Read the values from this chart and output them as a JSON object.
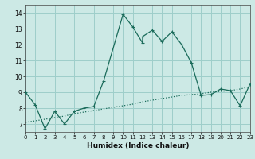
{
  "xlabel": "Humidex (Indice chaleur)",
  "background_color": "#cce9e5",
  "grid_color": "#9ececa",
  "line_color": "#1a6b5a",
  "x_main": [
    0,
    1,
    2,
    3,
    4,
    5,
    6,
    7,
    8,
    10,
    11,
    12,
    12,
    13,
    14,
    15,
    16,
    17,
    18,
    19,
    20,
    21,
    22,
    23
  ],
  "y_main": [
    9.0,
    8.2,
    6.7,
    7.8,
    7.0,
    7.8,
    8.0,
    8.1,
    9.7,
    13.9,
    13.1,
    12.1,
    12.5,
    12.9,
    12.2,
    12.8,
    12.0,
    10.85,
    8.8,
    8.85,
    9.2,
    9.1,
    8.15,
    9.5
  ],
  "x_trend": [
    0,
    2,
    3,
    4,
    5,
    6,
    7,
    8,
    9,
    10,
    11,
    12,
    13,
    14,
    15,
    16,
    17,
    18,
    19,
    20,
    21,
    22,
    23
  ],
  "y_trend": [
    7.1,
    7.3,
    7.4,
    7.5,
    7.65,
    7.75,
    7.85,
    7.95,
    8.05,
    8.15,
    8.25,
    8.4,
    8.5,
    8.6,
    8.7,
    8.8,
    8.85,
    8.9,
    9.0,
    9.05,
    9.1,
    9.2,
    9.35
  ],
  "xlim": [
    0,
    23
  ],
  "ylim": [
    6.5,
    14.5
  ],
  "yticks": [
    7,
    8,
    9,
    10,
    11,
    12,
    13,
    14
  ],
  "xticks": [
    0,
    1,
    2,
    3,
    4,
    5,
    6,
    7,
    8,
    9,
    10,
    11,
    12,
    13,
    14,
    15,
    16,
    17,
    18,
    19,
    20,
    21,
    22,
    23
  ]
}
